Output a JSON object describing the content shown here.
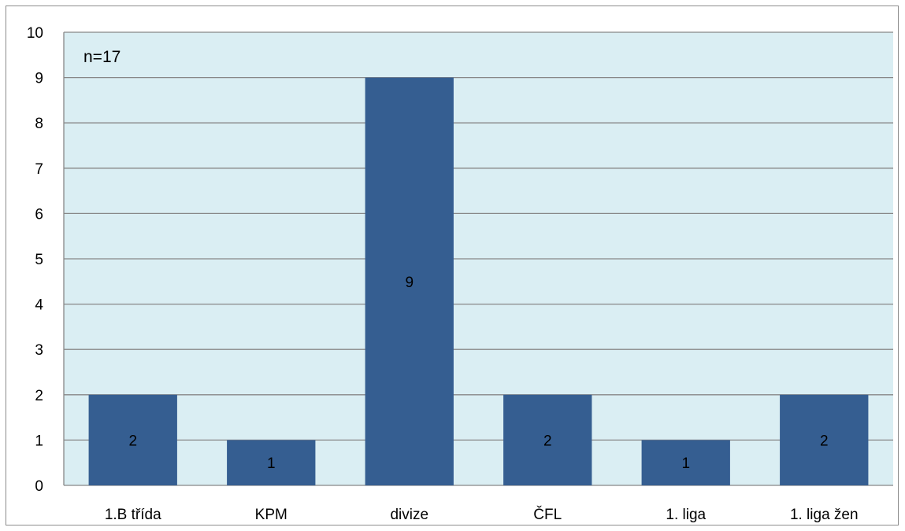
{
  "chart_data": {
    "type": "bar",
    "categories": [
      "1.B třída",
      "KPM",
      "divize",
      "ČFL",
      "1. liga",
      "1. liga žen"
    ],
    "values": [
      2,
      1,
      9,
      2,
      1,
      2
    ],
    "data_labels": [
      "2",
      "1",
      "9",
      "2",
      "1",
      "2"
    ],
    "ylim": [
      0,
      10
    ],
    "yticks": [
      "0",
      "1",
      "2",
      "3",
      "4",
      "5",
      "6",
      "7",
      "8",
      "9",
      "10"
    ],
    "grid": true,
    "legend": "none",
    "annotation": "n=17",
    "colors": {
      "bar": "#355E91",
      "plot_background": "#DAEEF3",
      "gridline": "#878787",
      "frame": "#8C8C8C"
    }
  }
}
